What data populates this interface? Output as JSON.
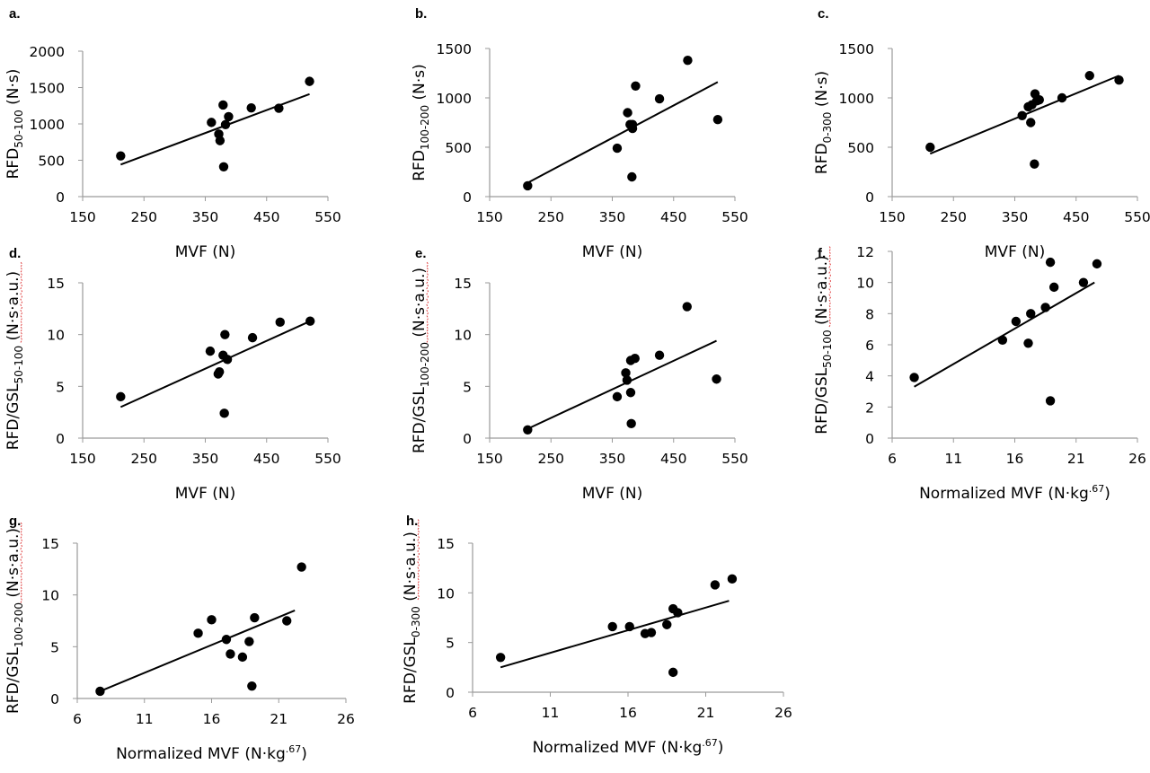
{
  "chart_data": [
    {
      "panel": "a.",
      "type": "scatter",
      "xlabel": "MVF (N)",
      "ylabel_pre": "RFD",
      "ylabel_sub": "50-100",
      "ylabel_post": " (N·s)",
      "xlim": [
        150,
        550
      ],
      "xticks": [
        150,
        250,
        350,
        450,
        550
      ],
      "ylim": [
        0,
        2000
      ],
      "yticks": [
        0,
        500,
        1000,
        1500,
        2000
      ],
      "points": [
        [
          212,
          560
        ],
        [
          360,
          1020
        ],
        [
          372,
          860
        ],
        [
          374,
          770
        ],
        [
          379,
          1260
        ],
        [
          380,
          410
        ],
        [
          383,
          990
        ],
        [
          388,
          1100
        ],
        [
          425,
          1220
        ],
        [
          470,
          1215
        ],
        [
          520,
          1585
        ]
      ],
      "fit": [
        [
          212,
          440
        ],
        [
          520,
          1410
        ]
      ],
      "squiggle": false
    },
    {
      "panel": "b.",
      "type": "scatter",
      "xlabel": "MVF (N)",
      "ylabel_pre": "RFD",
      "ylabel_sub": "100-200",
      "ylabel_post": " (N·s)",
      "xlim": [
        150,
        550
      ],
      "xticks": [
        150,
        250,
        350,
        450,
        550
      ],
      "ylim": [
        0,
        1500
      ],
      "yticks": [
        0,
        500,
        1000,
        1500
      ],
      "points": [
        [
          212,
          110
        ],
        [
          358,
          490
        ],
        [
          375,
          850
        ],
        [
          379,
          730
        ],
        [
          383,
          690
        ],
        [
          383,
          730
        ],
        [
          382,
          200
        ],
        [
          388,
          1120
        ],
        [
          427,
          990
        ],
        [
          473,
          1380
        ],
        [
          522,
          780
        ]
      ],
      "fit": [
        [
          212,
          140
        ],
        [
          522,
          1160
        ]
      ],
      "squiggle": false
    },
    {
      "panel": "c.",
      "type": "scatter",
      "xlabel": "MVF (N)",
      "ylabel_pre": "RFD",
      "ylabel_sub": "0-300",
      "ylabel_post": " (N·s)",
      "xlim": [
        150,
        550
      ],
      "xticks": [
        150,
        250,
        350,
        450,
        550
      ],
      "ylim": [
        0,
        1500
      ],
      "yticks": [
        0,
        500,
        1000,
        1500
      ],
      "points": [
        [
          212,
          500
        ],
        [
          362,
          820
        ],
        [
          372,
          910
        ],
        [
          376,
          750
        ],
        [
          378,
          930
        ],
        [
          382,
          330
        ],
        [
          383,
          1040
        ],
        [
          386,
          970
        ],
        [
          390,
          980
        ],
        [
          427,
          1000
        ],
        [
          472,
          1225
        ],
        [
          520,
          1180
        ]
      ],
      "fit": [
        [
          212,
          435
        ],
        [
          520,
          1225
        ]
      ],
      "squiggle": false
    },
    {
      "panel": "d.",
      "type": "scatter",
      "xlabel": "MVF (N)",
      "ylabel_pre": "RFD/GSL",
      "ylabel_sub": "50-100",
      "ylabel_post": " (N·s·a.u.)",
      "xlim": [
        150,
        550
      ],
      "xticks": [
        150,
        250,
        350,
        450,
        550
      ],
      "ylim": [
        0,
        15
      ],
      "yticks": [
        0,
        5,
        10,
        15
      ],
      "points": [
        [
          212,
          4.0
        ],
        [
          358,
          8.4
        ],
        [
          371,
          6.2
        ],
        [
          373,
          6.4
        ],
        [
          379,
          8.0
        ],
        [
          381,
          2.4
        ],
        [
          382,
          10.0
        ],
        [
          386,
          7.6
        ],
        [
          427,
          9.7
        ],
        [
          472,
          11.2
        ],
        [
          521,
          11.3
        ]
      ],
      "fit": [
        [
          212,
          3.0
        ],
        [
          521,
          11.3
        ]
      ],
      "squiggle": true
    },
    {
      "panel": "e.",
      "type": "scatter",
      "xlabel": "MVF (N)",
      "ylabel_pre": "RFD/GSL",
      "ylabel_sub": "100-200",
      "ylabel_post": " (N·s·a.u.)",
      "xlim": [
        150,
        550
      ],
      "xticks": [
        150,
        250,
        350,
        450,
        550
      ],
      "ylim": [
        0,
        15
      ],
      "yticks": [
        0,
        5,
        10,
        15
      ],
      "points": [
        [
          212,
          0.8
        ],
        [
          358,
          4.0
        ],
        [
          372,
          6.3
        ],
        [
          374,
          5.6
        ],
        [
          380,
          4.4
        ],
        [
          380,
          7.5
        ],
        [
          381,
          1.4
        ],
        [
          387,
          7.7
        ],
        [
          427,
          8.0
        ],
        [
          472,
          12.7
        ],
        [
          520,
          5.7
        ]
      ],
      "fit": [
        [
          212,
          0.9
        ],
        [
          520,
          9.4
        ]
      ],
      "squiggle": true
    },
    {
      "panel": "f.",
      "type": "scatter",
      "xlabel": "Normalized MVF (N·kg",
      "xlabel_sup": ".67",
      "xlabel_post": ")",
      "ylabel_pre": "RFD/GSL",
      "ylabel_sub": "50-100",
      "ylabel_post": " (N·s·a.u.)",
      "xlim": [
        6,
        26
      ],
      "xticks": [
        6,
        11,
        16,
        21,
        26
      ],
      "ylim": [
        0,
        12
      ],
      "yticks": [
        0,
        2,
        4,
        6,
        8,
        10,
        12
      ],
      "points": [
        [
          7.8,
          3.9
        ],
        [
          15.0,
          6.3
        ],
        [
          16.1,
          7.5
        ],
        [
          17.1,
          6.1
        ],
        [
          17.3,
          8.0
        ],
        [
          18.5,
          8.4
        ],
        [
          18.9,
          11.3
        ],
        [
          18.9,
          2.4
        ],
        [
          19.2,
          9.7
        ],
        [
          21.6,
          10.0
        ],
        [
          22.7,
          11.2
        ]
      ],
      "fit": [
        [
          7.8,
          3.3
        ],
        [
          22.5,
          10.0
        ]
      ],
      "squiggle": true
    },
    {
      "panel": "g.",
      "type": "scatter",
      "xlabel": "Normalized MVF (N·kg",
      "xlabel_sup": ".67",
      "xlabel_post": ")",
      "ylabel_pre": "RFD/GSL",
      "ylabel_sub": "100-200",
      "ylabel_post": " (N·s·a.u.)",
      "xlim": [
        6,
        26
      ],
      "xticks": [
        6,
        11,
        16,
        21,
        26
      ],
      "ylim": [
        0,
        15
      ],
      "yticks": [
        0,
        5,
        10,
        15
      ],
      "points": [
        [
          7.7,
          0.7
        ],
        [
          15.0,
          6.3
        ],
        [
          16.0,
          7.6
        ],
        [
          17.1,
          5.7
        ],
        [
          17.4,
          4.3
        ],
        [
          18.3,
          4.0
        ],
        [
          18.8,
          5.5
        ],
        [
          19.0,
          1.2
        ],
        [
          19.2,
          7.8
        ],
        [
          21.6,
          7.5
        ],
        [
          22.7,
          12.7
        ]
      ],
      "fit": [
        [
          7.7,
          0.7
        ],
        [
          22.2,
          8.5
        ]
      ],
      "squiggle": true
    },
    {
      "panel": "h.",
      "type": "scatter",
      "xlabel": "Normalized MVF (N·kg",
      "xlabel_sup": ".67",
      "xlabel_post": ")",
      "ylabel_pre": "RFD/GSL",
      "ylabel_sub": "0-300",
      "ylabel_post": " (N·s·a.u.)",
      "xlim": [
        6,
        26
      ],
      "xticks": [
        6,
        11,
        16,
        21,
        26
      ],
      "ylim": [
        0,
        15
      ],
      "yticks": [
        0,
        5,
        10,
        15
      ],
      "points": [
        [
          7.8,
          3.5
        ],
        [
          15.0,
          6.6
        ],
        [
          16.1,
          6.6
        ],
        [
          17.1,
          5.9
        ],
        [
          17.5,
          6.0
        ],
        [
          18.5,
          6.8
        ],
        [
          18.9,
          8.4
        ],
        [
          18.9,
          2.0
        ],
        [
          19.2,
          8.0
        ],
        [
          21.6,
          10.8
        ],
        [
          22.7,
          11.4
        ]
      ],
      "fit": [
        [
          7.8,
          2.5
        ],
        [
          22.5,
          9.2
        ]
      ],
      "squiggle": true
    }
  ]
}
